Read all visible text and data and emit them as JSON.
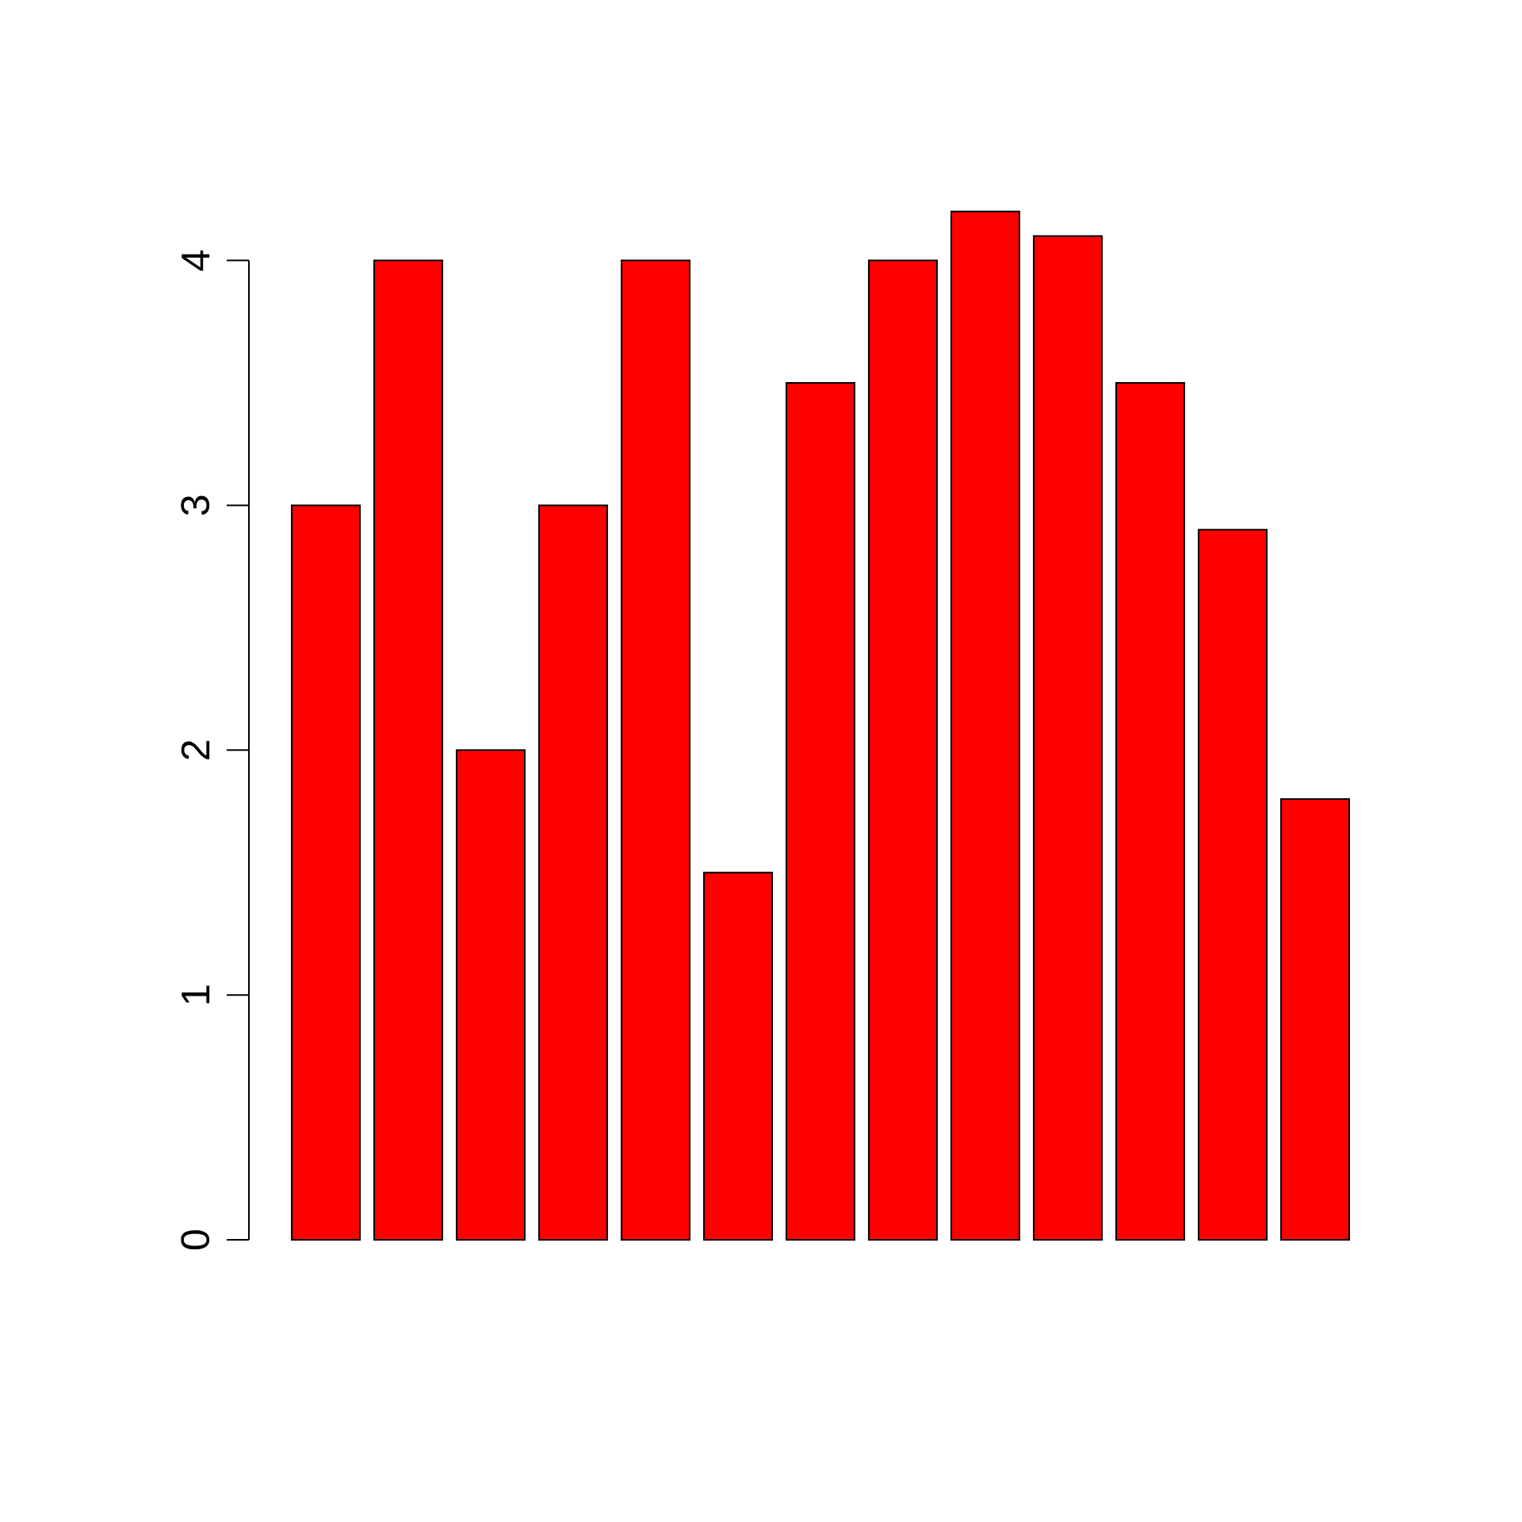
{
  "chart_data": {
    "type": "bar",
    "categories": [
      null,
      null,
      null,
      null,
      null,
      null,
      null,
      null,
      null,
      null,
      null,
      null,
      null
    ],
    "values": [
      3,
      4,
      2,
      3,
      4,
      1.5,
      3.5,
      4,
      4.2,
      4.1,
      3.5,
      2.9,
      1.8
    ],
    "color": "#ff0000",
    "ylim": [
      0,
      4.2
    ],
    "yticks": [
      0,
      1,
      2,
      3,
      4
    ]
  }
}
